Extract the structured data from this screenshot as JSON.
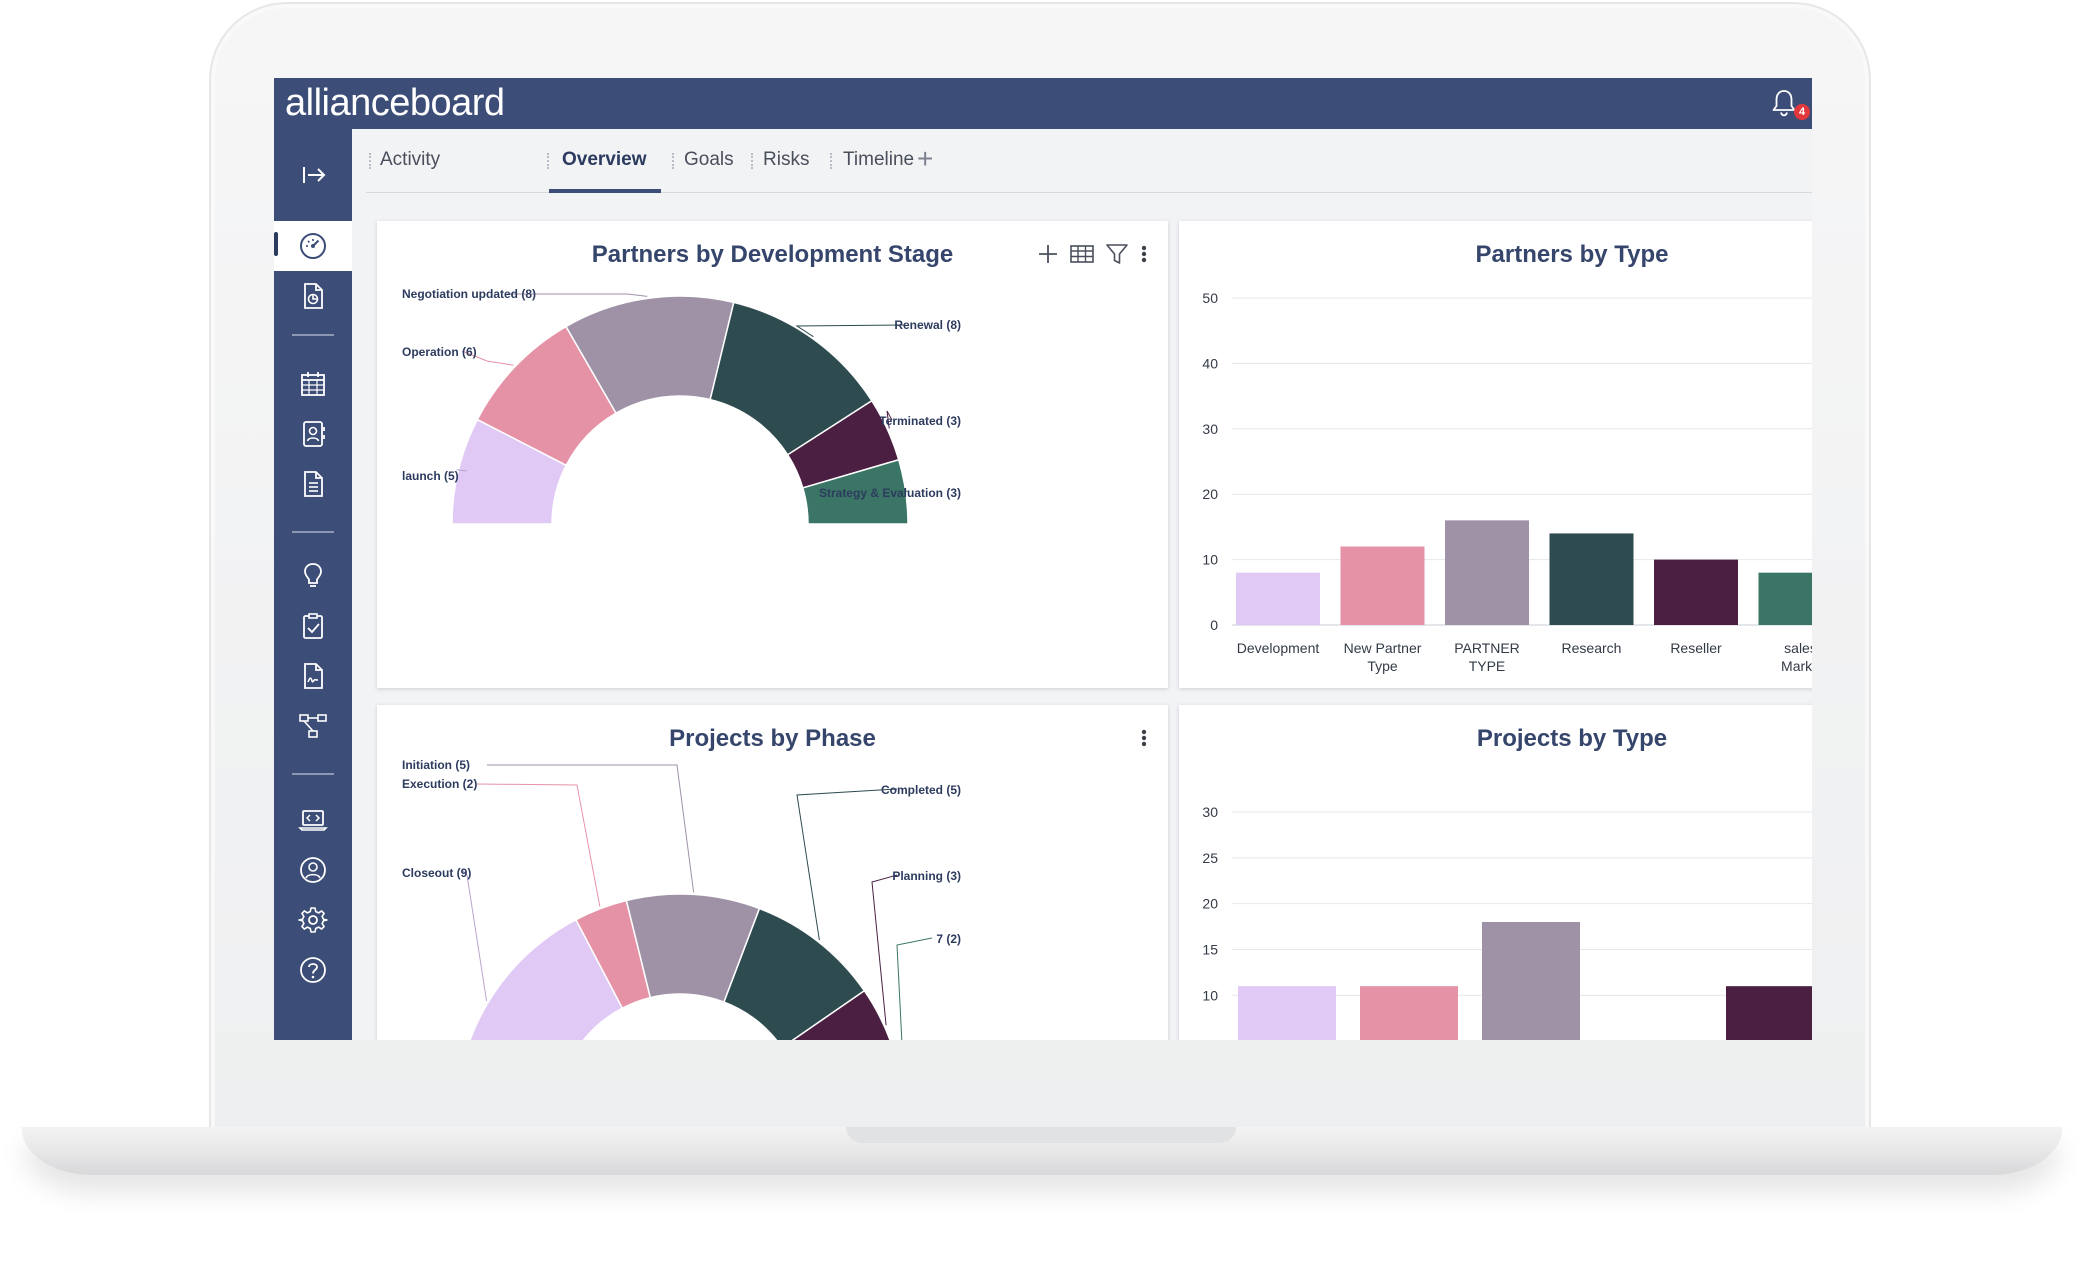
{
  "app": {
    "brand": "allianceboard",
    "notification_count": "4"
  },
  "tabs": [
    {
      "label": "Activity"
    },
    {
      "label": "Overview",
      "active": true
    },
    {
      "label": "Goals"
    },
    {
      "label": "Risks"
    },
    {
      "label": "Timeline"
    }
  ],
  "tab_add_label": "+",
  "sidebar_icons": [
    "collapse-arrow-icon",
    "dashboard-gauge-icon",
    "document-chart-icon",
    "calendar-icon",
    "contact-card-icon",
    "document-list-icon",
    "lightbulb-icon",
    "clipboard-check-icon",
    "document-signature-icon",
    "network-hierarchy-icon",
    "laptop-code-icon",
    "user-circle-icon",
    "settings-gear-icon",
    "help-circle-icon"
  ],
  "colors": {
    "primary": "#3c4d77",
    "lavender": "#e0caf5",
    "pink": "#e592a6",
    "mauve": "#9f92a7",
    "dark_teal": "#2e4b4f",
    "plum": "#4a1f42",
    "teal": "#3a7565"
  },
  "cards": {
    "partners_stage": {
      "title": "Partners by Development Stage"
    },
    "partners_type": {
      "title": "Partners by Type"
    },
    "projects_phase": {
      "title": "Projects by Phase"
    },
    "projects_type": {
      "title": "Projects by Type"
    }
  },
  "chart_data": [
    {
      "id": "partners_stage",
      "type": "pie",
      "variant": "half-donut",
      "title": "Partners by Development Stage",
      "slices": [
        {
          "label": "launch (5)",
          "value": 5,
          "color": "#e0caf5"
        },
        {
          "label": "Operation (6)",
          "value": 6,
          "color": "#e592a6"
        },
        {
          "label": "Negotiation updated (8)",
          "value": 8,
          "color": "#9f92a7"
        },
        {
          "label": "Renewal (8)",
          "value": 8,
          "color": "#2e4b4f"
        },
        {
          "label": "Terminated (3)",
          "value": 3,
          "color": "#4a1f42"
        },
        {
          "label": "Strategy & Evaluation (3)",
          "value": 3,
          "color": "#3a7565"
        }
      ]
    },
    {
      "id": "partners_type",
      "type": "bar",
      "title": "Partners by Type",
      "categories": [
        "Development",
        "New Partner Type",
        "PARTNER TYPE",
        "Research",
        "Reseller",
        "sales Marke"
      ],
      "values": [
        8,
        12,
        16,
        14,
        10,
        8
      ],
      "colors": [
        "#e0caf5",
        "#e592a6",
        "#9f92a7",
        "#2e4b4f",
        "#4a1f42",
        "#3a7565"
      ],
      "ylim": [
        0,
        50
      ],
      "yticks": [
        0,
        10,
        20,
        30,
        40,
        50
      ],
      "grid": true
    },
    {
      "id": "projects_phase",
      "type": "pie",
      "variant": "half-donut",
      "title": "Projects by Phase",
      "slices": [
        {
          "label": "Closeout (9)",
          "value": 9,
          "color": "#e0caf5"
        },
        {
          "label": "Execution (2)",
          "value": 2,
          "color": "#e592a6"
        },
        {
          "label": "Initiation (5)",
          "value": 5,
          "color": "#9f92a7"
        },
        {
          "label": "Completed (5)",
          "value": 5,
          "color": "#2e4b4f"
        },
        {
          "label": "Planning (3)",
          "value": 3,
          "color": "#4a1f42"
        },
        {
          "label": "7 (2)",
          "value": 2,
          "color": "#3a7565"
        }
      ]
    },
    {
      "id": "projects_type",
      "type": "bar",
      "title": "Projects by Type",
      "categories": [
        "",
        "",
        "",
        "",
        ""
      ],
      "values": [
        11,
        11,
        18,
        0,
        11
      ],
      "colors": [
        "#e0caf5",
        "#e592a6",
        "#9f92a7",
        "#2e4b4f",
        "#4a1f42"
      ],
      "ylim": [
        0,
        30
      ],
      "yticks": [
        10,
        15,
        20,
        25,
        30
      ],
      "grid": true
    }
  ]
}
